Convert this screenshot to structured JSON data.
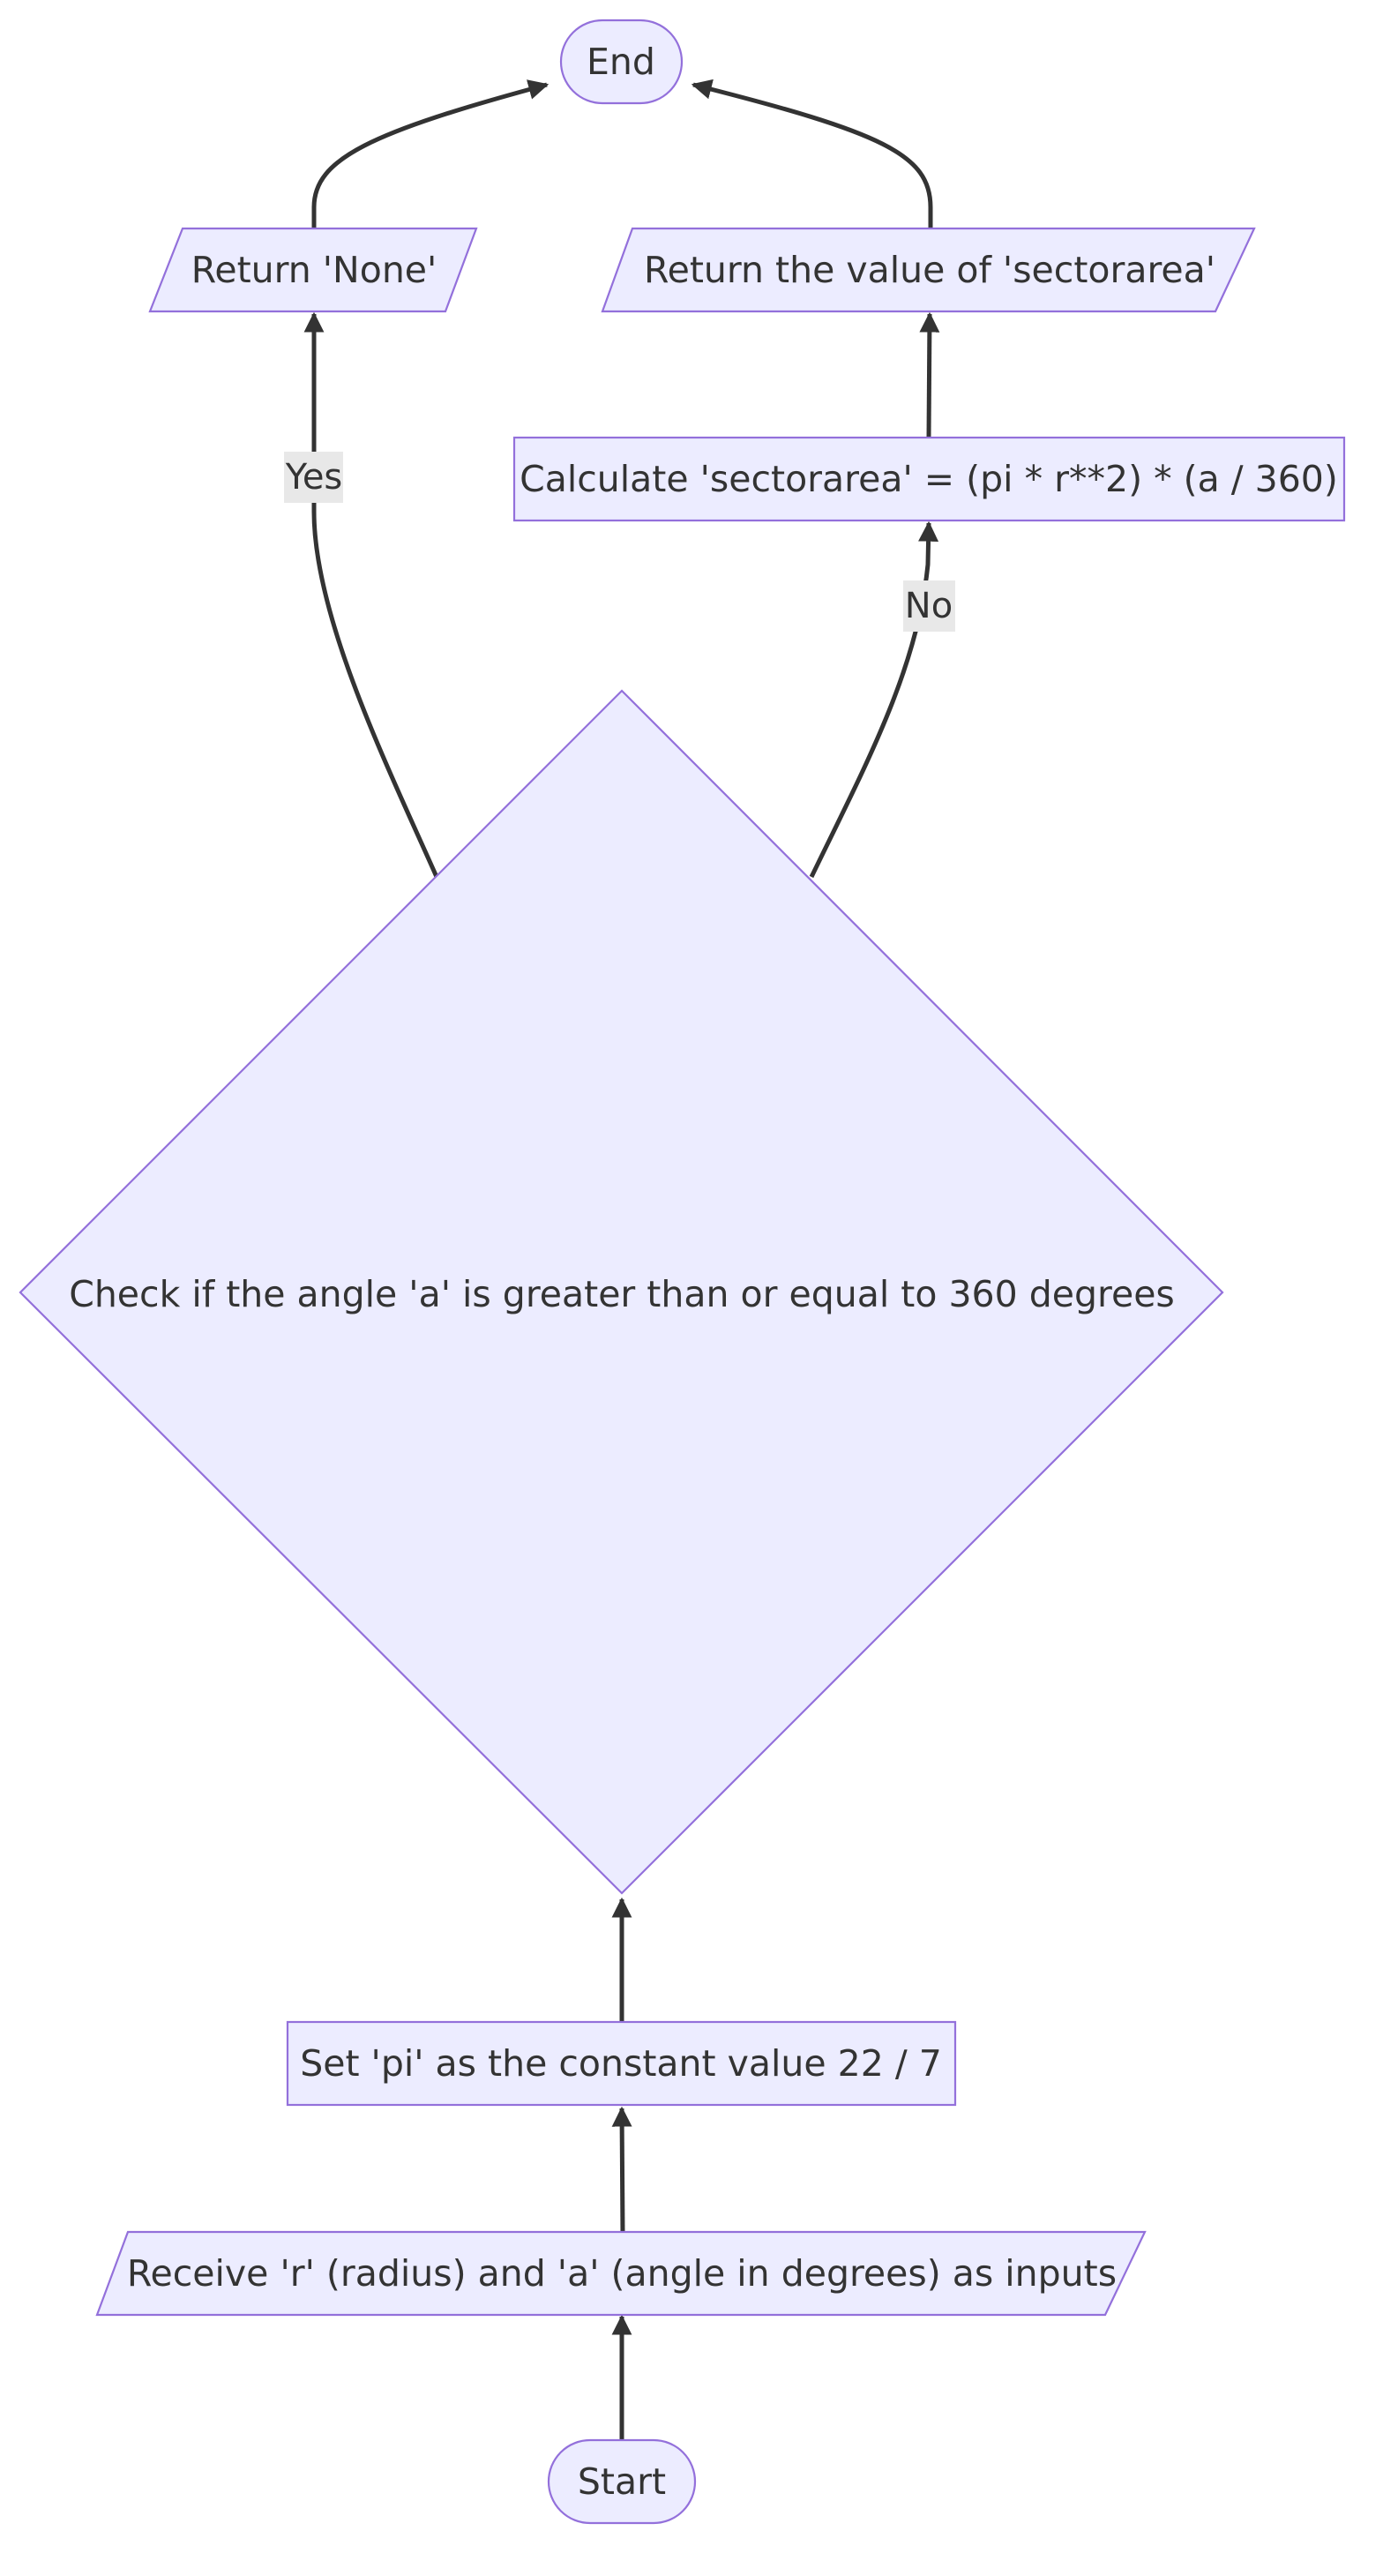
{
  "nodes": {
    "end": "End",
    "return_none": "Return 'None'",
    "return_value": "Return the value of 'sectorarea'",
    "calculate": "Calculate 'sectorarea' = (pi * r**2) * (a / 360)",
    "check": "Check if the angle 'a' is greater than or equal to 360 degrees",
    "set_pi": "Set 'pi' as the constant value 22 / 7",
    "receive": "Receive 'r' (radius) and 'a' (angle in degrees) as inputs",
    "start": "Start"
  },
  "edges": {
    "yes_label": "Yes",
    "no_label": "No"
  },
  "colors": {
    "node_fill": "#ECECFF",
    "node_stroke": "#9370DB",
    "edge": "#333333",
    "edge_label_bg": "#e8e8e8"
  }
}
